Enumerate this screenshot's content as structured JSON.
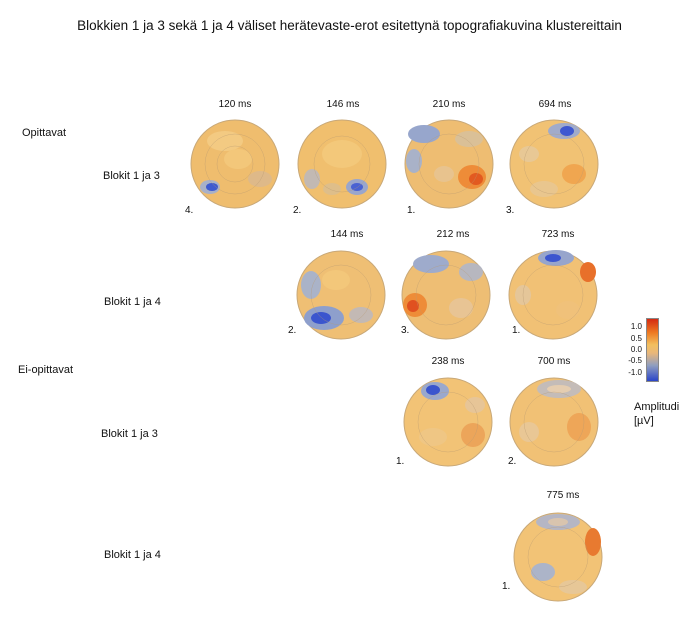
{
  "title": "Blokkien 1 ja 3 sekä 1 ja 4 väliset herätevaste-erot esitettynä topografiakuvina klustereittain",
  "groups": {
    "learners": "Opittavat",
    "nonlearners": "Ei-opittavat"
  },
  "rows": {
    "r1": "Blokit 1 ja 3",
    "r2": "Blokit 1 ja 4",
    "r3": "Blokit 1 ja 3",
    "r4": "Blokit 1 ja 4"
  },
  "maps": [
    {
      "time": "120 ms",
      "cluster": "4."
    },
    {
      "time": "146 ms",
      "cluster": "2."
    },
    {
      "time": "210 ms",
      "cluster": "1."
    },
    {
      "time": "694 ms",
      "cluster": "3."
    },
    {
      "time": "144 ms",
      "cluster": "2."
    },
    {
      "time": "212 ms",
      "cluster": "3."
    },
    {
      "time": "723 ms",
      "cluster": "1."
    },
    {
      "time": "238 ms",
      "cluster": "1."
    },
    {
      "time": "700 ms",
      "cluster": "2."
    },
    {
      "time": "775 ms",
      "cluster": "1."
    }
  ],
  "colorbar": {
    "ticks": [
      "1.0",
      "0.5",
      "0.0",
      "-0.5",
      "-1.0"
    ],
    "label_line1": "Amplitudi",
    "label_line2": "[µV]",
    "colors": {
      "positive": "#d42a12",
      "neutral": "#f2c060",
      "negative": "#2a45c8"
    }
  }
}
